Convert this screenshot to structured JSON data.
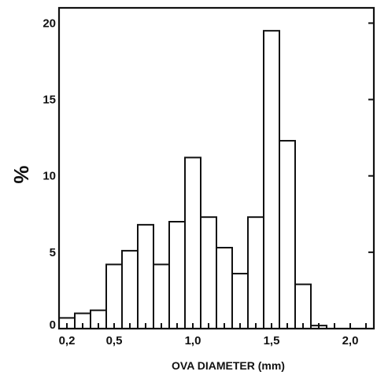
{
  "chart_data": {
    "type": "bar",
    "title": "",
    "xlabel": "OVA DIAMETER (mm)",
    "ylabel": "%",
    "ylim": [
      0,
      21
    ],
    "xlim": [
      0.15,
      2.15
    ],
    "grid": false,
    "bin_width": 0.1,
    "bins": [
      {
        "x_start": 0.15,
        "value": 0.7
      },
      {
        "x_start": 0.25,
        "value": 1.0
      },
      {
        "x_start": 0.35,
        "value": 1.2
      },
      {
        "x_start": 0.45,
        "value": 4.2
      },
      {
        "x_start": 0.55,
        "value": 5.1
      },
      {
        "x_start": 0.65,
        "value": 6.8
      },
      {
        "x_start": 0.75,
        "value": 4.2
      },
      {
        "x_start": 0.85,
        "value": 7.0
      },
      {
        "x_start": 0.95,
        "value": 11.2
      },
      {
        "x_start": 1.05,
        "value": 7.3
      },
      {
        "x_start": 1.15,
        "value": 5.3
      },
      {
        "x_start": 1.25,
        "value": 3.6
      },
      {
        "x_start": 1.35,
        "value": 7.3
      },
      {
        "x_start": 1.45,
        "value": 19.5
      },
      {
        "x_start": 1.55,
        "value": 12.3
      },
      {
        "x_start": 1.65,
        "value": 2.9
      },
      {
        "x_start": 1.75,
        "value": 0.2
      }
    ],
    "x_ticks": [
      {
        "value": 0.2,
        "label": "0,2"
      },
      {
        "value": 0.3,
        "label": ""
      },
      {
        "value": 0.4,
        "label": ""
      },
      {
        "value": 0.5,
        "label": "0,5"
      },
      {
        "value": 0.6,
        "label": ""
      },
      {
        "value": 0.7,
        "label": ""
      },
      {
        "value": 0.8,
        "label": ""
      },
      {
        "value": 0.9,
        "label": ""
      },
      {
        "value": 1.0,
        "label": "1,0"
      },
      {
        "value": 1.1,
        "label": ""
      },
      {
        "value": 1.2,
        "label": ""
      },
      {
        "value": 1.3,
        "label": ""
      },
      {
        "value": 1.4,
        "label": ""
      },
      {
        "value": 1.5,
        "label": "1,5"
      },
      {
        "value": 1.6,
        "label": ""
      },
      {
        "value": 1.7,
        "label": ""
      },
      {
        "value": 1.8,
        "label": ""
      },
      {
        "value": 1.9,
        "label": ""
      },
      {
        "value": 2.0,
        "label": "2,0"
      },
      {
        "value": 2.1,
        "label": ""
      }
    ],
    "y_ticks": [
      {
        "value": 0,
        "label": "0"
      },
      {
        "value": 5,
        "label": "5"
      },
      {
        "value": 10,
        "label": "10"
      },
      {
        "value": 15,
        "label": "15"
      },
      {
        "value": 20,
        "label": "20"
      }
    ]
  }
}
